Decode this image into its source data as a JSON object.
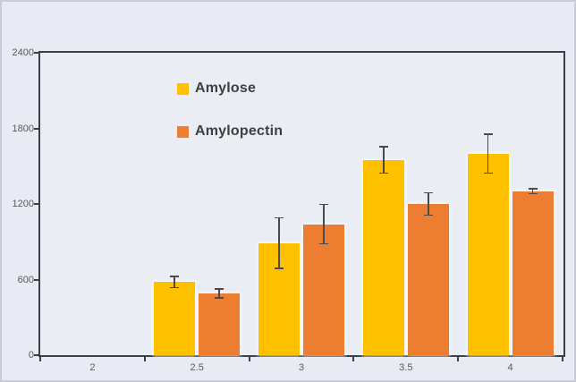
{
  "chart_data": {
    "type": "bar",
    "title": "",
    "xlabel": "",
    "ylabel": "",
    "categories": [
      "2",
      "2.5",
      "3",
      "3.5",
      "4"
    ],
    "series": [
      {
        "name": "Amylose",
        "color": "#FFC000",
        "values": [
          0,
          580,
          890,
          1550,
          1600
        ],
        "errors": [
          0,
          45,
          200,
          105,
          155
        ]
      },
      {
        "name": "Amylopectin",
        "color": "#ED7D31",
        "values": [
          0,
          490,
          1040,
          1200,
          1300
        ],
        "errors": [
          0,
          35,
          155,
          90,
          20
        ]
      }
    ],
    "ylim": [
      0,
      2400
    ],
    "yticks": [
      0,
      600,
      1200,
      1800,
      2400
    ],
    "grid": false,
    "legend_position": "inside-top-left",
    "error_bars": true
  },
  "colors": {
    "background": "#E9EBF4",
    "plot_border": "#3A3F49",
    "tick_label": "#595959",
    "legend_text": "#3F3F3F",
    "error_bar": "#4A4A4A"
  }
}
